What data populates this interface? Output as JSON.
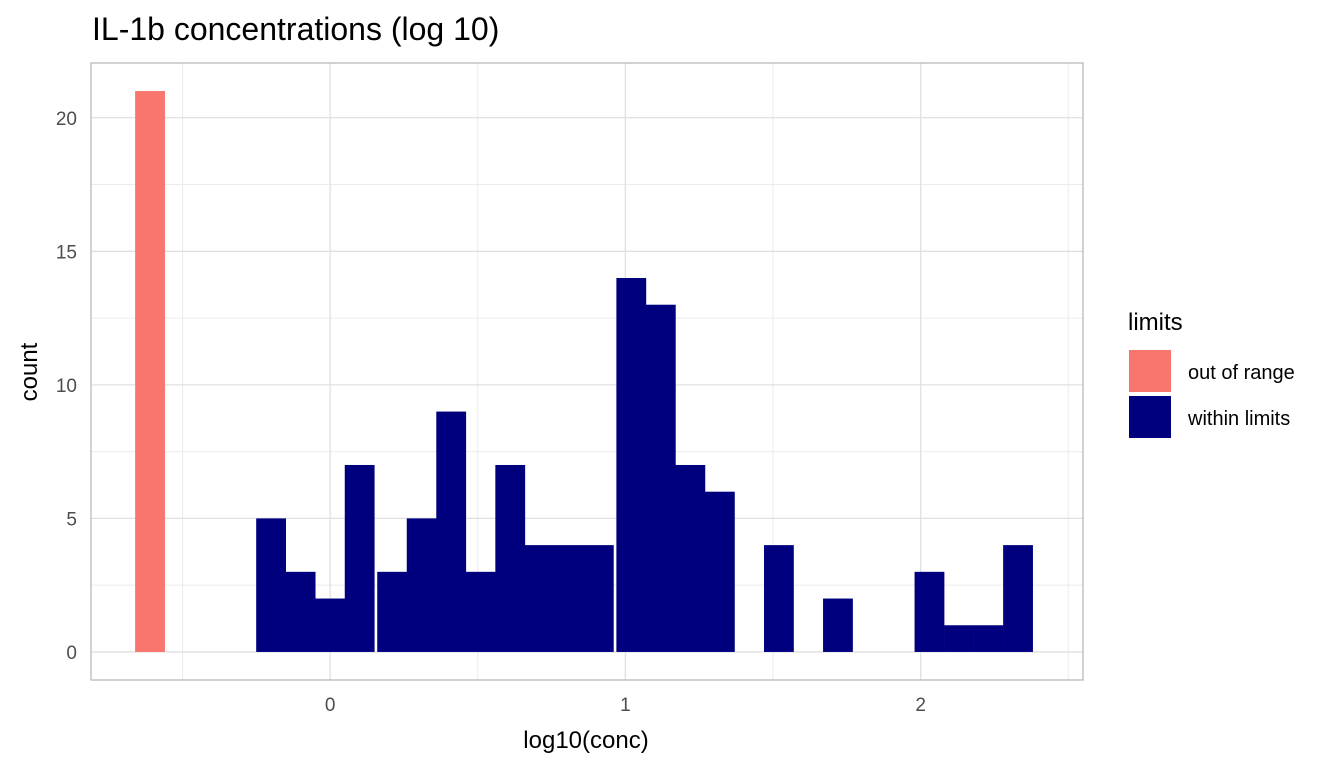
{
  "chart_data": {
    "type": "bar",
    "title": "IL-1b concentrations (log 10)",
    "xlabel": "log10(conc)",
    "ylabel": "count",
    "xlim": [
      -0.81,
      2.55
    ],
    "ylim": [
      -1.05,
      22.05
    ],
    "x_ticks": [
      0,
      1,
      2
    ],
    "x_tick_labels": [
      "0",
      "1",
      "2"
    ],
    "y_ticks": [
      0,
      5,
      10,
      15,
      20
    ],
    "y_tick_labels": [
      "0",
      "5",
      "10",
      "15",
      "20"
    ],
    "grid": true,
    "bin_width": 0.101,
    "legend": {
      "title": "limits",
      "placement": "right"
    },
    "series": [
      {
        "name": "out of range",
        "color": "#F8766D",
        "bins": [
          {
            "x": -0.61,
            "count": 21
          }
        ]
      },
      {
        "name": "within limits",
        "color": "#00007F",
        "bins": [
          {
            "x": -0.2,
            "count": 5
          },
          {
            "x": -0.1,
            "count": 3
          },
          {
            "x": 0.0,
            "count": 2
          },
          {
            "x": 0.1,
            "count": 7
          },
          {
            "x": 0.21,
            "count": 3
          },
          {
            "x": 0.31,
            "count": 5
          },
          {
            "x": 0.41,
            "count": 9
          },
          {
            "x": 0.51,
            "count": 3
          },
          {
            "x": 0.61,
            "count": 7
          },
          {
            "x": 0.71,
            "count": 4
          },
          {
            "x": 0.81,
            "count": 4
          },
          {
            "x": 0.91,
            "count": 4
          },
          {
            "x": 1.02,
            "count": 14
          },
          {
            "x": 1.12,
            "count": 13
          },
          {
            "x": 1.22,
            "count": 7
          },
          {
            "x": 1.32,
            "count": 6
          },
          {
            "x": 1.52,
            "count": 4
          },
          {
            "x": 1.72,
            "count": 2
          },
          {
            "x": 2.03,
            "count": 3
          },
          {
            "x": 2.13,
            "count": 1
          },
          {
            "x": 2.23,
            "count": 1
          },
          {
            "x": 2.33,
            "count": 4
          }
        ]
      }
    ]
  }
}
